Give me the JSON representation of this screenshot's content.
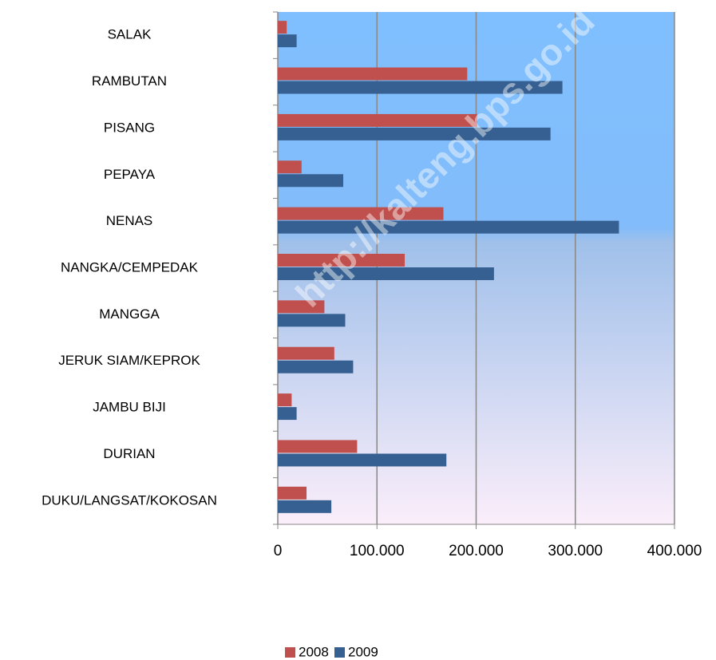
{
  "chart_data": {
    "type": "hbar",
    "watermark": "http://kalteng.bps.go.id",
    "categories": [
      "SALAK",
      "RAMBUTAN",
      "PISANG",
      "PEPAYA",
      "NENAS",
      "NANGKA/CEMPEDAK",
      "MANGGA",
      "JERUK SIAM/KEPROK",
      "JAMBU BIJI",
      "DURIAN",
      "DUKU/LANGSAT/KOKOSAN"
    ],
    "series": [
      {
        "name": "2008",
        "color": "#c0504d",
        "values": [
          9000,
          191000,
          201000,
          24000,
          167000,
          128000,
          47000,
          57000,
          14000,
          80000,
          29000
        ]
      },
      {
        "name": "2009",
        "color": "#376092",
        "values": [
          19000,
          287000,
          275000,
          66000,
          344000,
          218000,
          68000,
          76000,
          19000,
          170000,
          54000
        ]
      }
    ],
    "xlim": [
      0,
      400000
    ],
    "xticks": [
      0,
      {
        "value": 100000,
        "label": "100.000"
      },
      {
        "value": 200000,
        "label": "200.000"
      },
      {
        "value": 300000,
        "label": "300.000"
      },
      {
        "value": 400000,
        "label": "400.000"
      }
    ],
    "grid": true,
    "legend": "bottom"
  }
}
